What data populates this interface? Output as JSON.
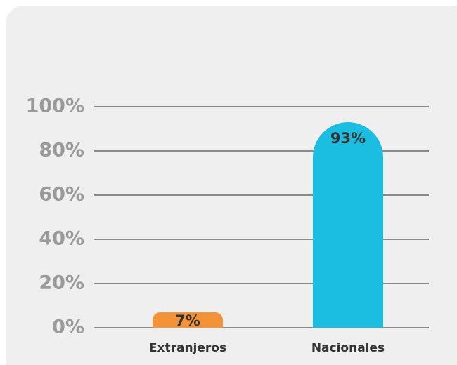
{
  "chart_data": {
    "type": "bar",
    "categories": [
      "Extranjeros",
      "Nacionales"
    ],
    "values": [
      7,
      93
    ],
    "value_labels": [
      "7%",
      "93%"
    ],
    "colors": [
      "#f39236",
      "#1bbde0"
    ],
    "ylim": [
      0,
      100
    ],
    "yticks": [
      {
        "value": 0,
        "label": "0%"
      },
      {
        "value": 20,
        "label": "20%"
      },
      {
        "value": 40,
        "label": "40%"
      },
      {
        "value": 60,
        "label": "60%"
      },
      {
        "value": 80,
        "label": "80%"
      },
      {
        "value": 100,
        "label": "100%"
      }
    ],
    "grid": true
  }
}
